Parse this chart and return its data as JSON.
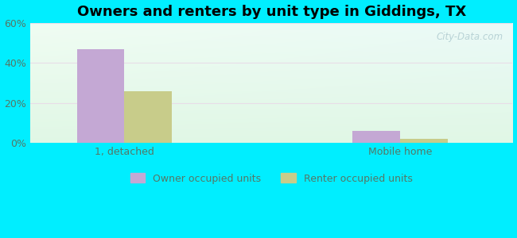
{
  "title": "Owners and renters by unit type in Giddings, TX",
  "categories": [
    "1, detached",
    "Mobile home"
  ],
  "owner_values": [
    47,
    6
  ],
  "renter_values": [
    26,
    2
  ],
  "owner_color": "#c4a8d4",
  "renter_color": "#c8cc8a",
  "ylim": [
    0,
    60
  ],
  "yticks": [
    0,
    20,
    40,
    60
  ],
  "ytick_labels": [
    "0%",
    "20%",
    "40%",
    "60%"
  ],
  "background_outer": "#00eeff",
  "watermark": "City-Data.com",
  "legend_owner": "Owner occupied units",
  "legend_renter": "Renter occupied units",
  "bar_width": 0.38,
  "group_positions": [
    1.0,
    3.2
  ],
  "title_fontsize": 13,
  "axis_fontsize": 9,
  "legend_fontsize": 9,
  "tick_color": "#557766",
  "grid_color": "#ddeedd",
  "xlim": [
    0.25,
    4.1
  ]
}
